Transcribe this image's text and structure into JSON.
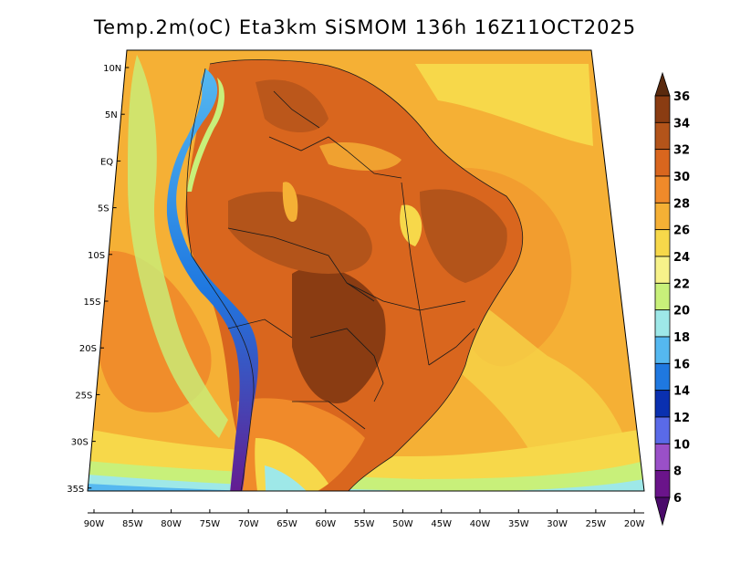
{
  "title": "Temp.2m(oC) Eta3km SiSMOM 136h 16Z11OCT2025",
  "axes": {
    "lat_labels": [
      "10N",
      "5N",
      "EQ",
      "5S",
      "10S",
      "15S",
      "20S",
      "25S",
      "30S",
      "35S"
    ],
    "lon_labels": [
      "90W",
      "85W",
      "80W",
      "75W",
      "70W",
      "65W",
      "60W",
      "55W",
      "50W",
      "45W",
      "40W",
      "35W",
      "30W",
      "25W",
      "20W"
    ]
  },
  "colorbar": {
    "labels": [
      "36",
      "34",
      "32",
      "30",
      "28",
      "26",
      "24",
      "22",
      "20",
      "18",
      "16",
      "14",
      "12",
      "10",
      "8",
      "6"
    ],
    "colors": [
      "#5a2a0e",
      "#8a3c12",
      "#b3541a",
      "#d9661e",
      "#f08a2a",
      "#f5b035",
      "#f7d84a",
      "#f7f28a",
      "#c8f07a",
      "#9ee8e8",
      "#55b8f0",
      "#1f78e0",
      "#0a30b0",
      "#5a6ae8",
      "#9a50c8",
      "#6a148a",
      "#4a0a6a"
    ]
  }
}
